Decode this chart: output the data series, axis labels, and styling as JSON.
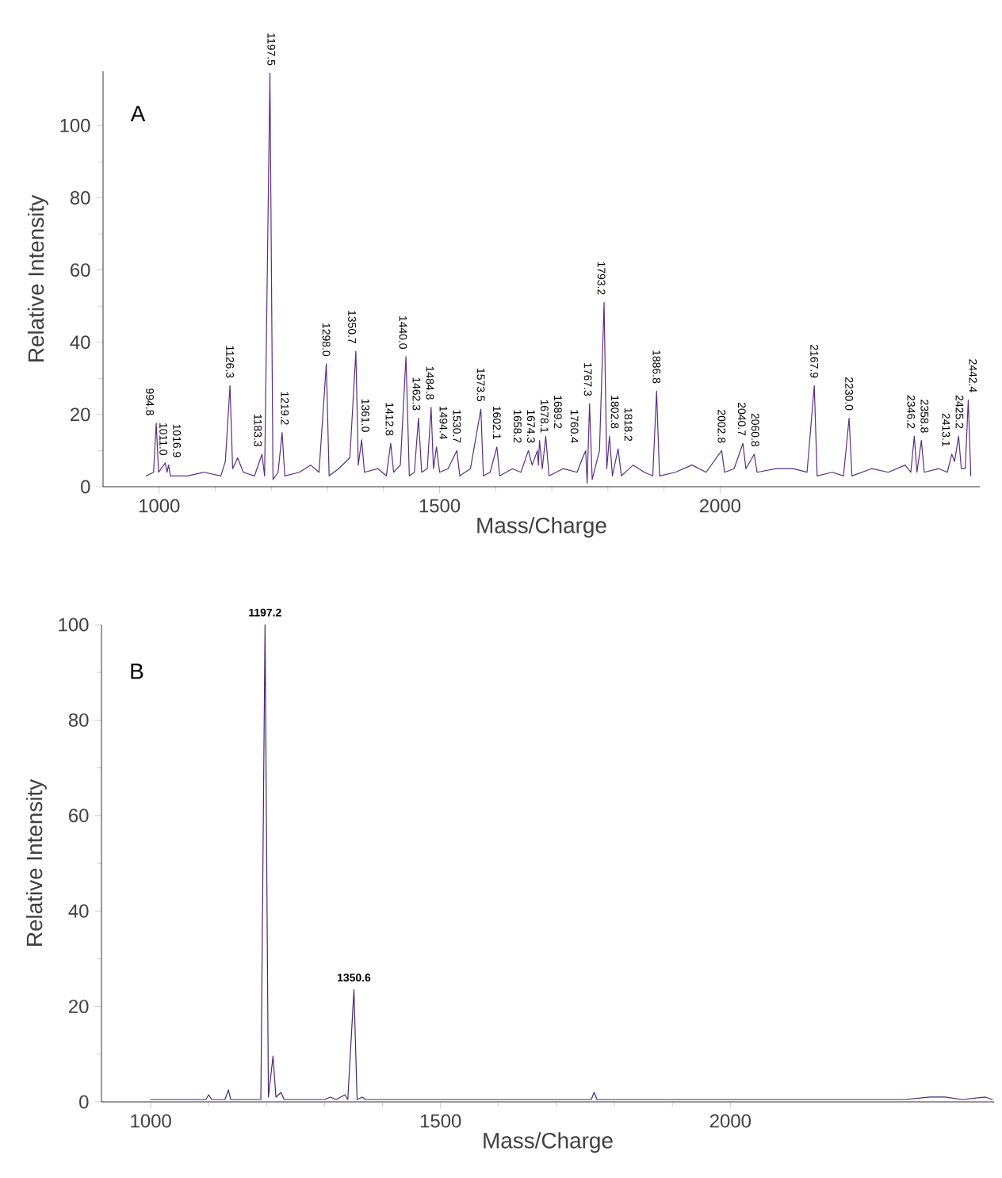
{
  "chart_data": [
    {
      "type": "line",
      "xlabel": "Mass/Charge",
      "ylabel": "Relative Intensity",
      "color": "#5b2c83",
      "xlim": [
        900,
        2463
      ],
      "ylim": [
        0,
        115
      ],
      "xticks": [
        1000,
        1500,
        2000
      ],
      "yticks": [
        0,
        20,
        40,
        60,
        80,
        100
      ],
      "x": [
        977,
        990,
        994.8,
        999,
        1011.0,
        1014,
        1016.9,
        1020,
        1050,
        1080,
        1110,
        1118,
        1126.3,
        1131,
        1140,
        1150,
        1170,
        1183.3,
        1188,
        1197.5,
        1203,
        1212,
        1219.2,
        1224,
        1250,
        1270,
        1285,
        1298.0,
        1303,
        1320,
        1340,
        1350.7,
        1355,
        1361.0,
        1366,
        1390,
        1405,
        1412.8,
        1418,
        1430,
        1440.0,
        1446,
        1455,
        1462.3,
        1468,
        1478,
        1484.8,
        1489,
        1494.4,
        1500,
        1515,
        1530.7,
        1536,
        1555,
        1573.5,
        1578,
        1590,
        1602.1,
        1607,
        1630,
        1645,
        1658.2,
        1665,
        1674.3,
        1676,
        1678.1,
        1683,
        1689.2,
        1695,
        1720,
        1745,
        1755,
        1760.4,
        1763,
        1767.3,
        1772,
        1785,
        1793.2,
        1798,
        1802.8,
        1808,
        1818.2,
        1824,
        1845,
        1865,
        1880,
        1886.8,
        1892,
        1920,
        1950,
        1975,
        2002.8,
        2008,
        2025,
        2040.7,
        2046,
        2060.8,
        2066,
        2100,
        2130,
        2155,
        2167.9,
        2173,
        2200,
        2220,
        2230.0,
        2235,
        2270,
        2300,
        2330,
        2340,
        2346.2,
        2351,
        2358.8,
        2364,
        2390,
        2405,
        2413.1,
        2418,
        2425.2,
        2430,
        2437,
        2442.4,
        2447
      ],
      "values": [
        3,
        4,
        17.6,
        4,
        6.6,
        4,
        6,
        3,
        3,
        4,
        3,
        7,
        28,
        5,
        8,
        4,
        3,
        9,
        3,
        114.5,
        2,
        4,
        15,
        3,
        4,
        6,
        4,
        34,
        3,
        5,
        8,
        37.5,
        6,
        13,
        4,
        5,
        3,
        12,
        4,
        6,
        36,
        3,
        4,
        19,
        4,
        5,
        22,
        5,
        11,
        4,
        5,
        10,
        3,
        5,
        21.5,
        3,
        4,
        11,
        3,
        5,
        4,
        10,
        6,
        10,
        6,
        12.8,
        5,
        14,
        3,
        5,
        4,
        8,
        10,
        1,
        23,
        2,
        10,
        51,
        5,
        14,
        3,
        10.5,
        3,
        6,
        4,
        3,
        26.5,
        3,
        4,
        6,
        4,
        10,
        4,
        5,
        12,
        5,
        9,
        4,
        5,
        5,
        4,
        28,
        3,
        4,
        3,
        19,
        3,
        5,
        4,
        6,
        4,
        14,
        4,
        12.8,
        4,
        5,
        4,
        9,
        7,
        14,
        5,
        5,
        24,
        3
      ],
      "annotations": [
        "A",
        {
          "text": "994.8",
          "x": 994.8,
          "y": 17.6
        },
        {
          "text": "1011.0",
          "x": 1011.0,
          "y": 6.6
        },
        {
          "text": "1016.9",
          "x": 1016.9,
          "y": 6
        },
        {
          "text": "1126.3",
          "x": 1126.3,
          "y": 28
        },
        {
          "text": "1183.3",
          "x": 1183.3,
          "y": 9
        },
        {
          "text": "1197.5",
          "x": 1197.5,
          "y": 114.5
        },
        {
          "text": "1219.2",
          "x": 1219.2,
          "y": 15
        },
        {
          "text": "1298.0",
          "x": 1298.0,
          "y": 34
        },
        {
          "text": "1350.7",
          "x": 1350.7,
          "y": 37.5
        },
        {
          "text": "1361.0",
          "x": 1361.0,
          "y": 13
        },
        {
          "text": "1412.8",
          "x": 1412.8,
          "y": 12
        },
        {
          "text": "1440.0",
          "x": 1440.0,
          "y": 36
        },
        {
          "text": "1462.3",
          "x": 1462.3,
          "y": 19
        },
        {
          "text": "1484.8",
          "x": 1484.8,
          "y": 22
        },
        {
          "text": "1494.4",
          "x": 1494.4,
          "y": 11
        },
        {
          "text": "1530.7",
          "x": 1530.7,
          "y": 10
        },
        {
          "text": "1573.5",
          "x": 1573.5,
          "y": 21.5
        },
        {
          "text": "1602.1",
          "x": 1602.1,
          "y": 11
        },
        {
          "text": "1658.2",
          "x": 1658.2,
          "y": 10
        },
        {
          "text": "1674.3",
          "x": 1674.3,
          "y": 10
        },
        {
          "text": "1678.1",
          "x": 1678.1,
          "y": 12.8
        },
        {
          "text": "1689.2",
          "x": 1689.2,
          "y": 14
        },
        {
          "text": "1760.4",
          "x": 1760.4,
          "y": 10
        },
        {
          "text": "1767.3",
          "x": 1767.3,
          "y": 23
        },
        {
          "text": "1793.2",
          "x": 1793.2,
          "y": 51
        },
        {
          "text": "1802.8",
          "x": 1802.8,
          "y": 14
        },
        {
          "text": "1818.2",
          "x": 1818.2,
          "y": 10.5
        },
        {
          "text": "1886.8",
          "x": 1886.8,
          "y": 26.5
        },
        {
          "text": "2002.8",
          "x": 2002.8,
          "y": 10
        },
        {
          "text": "2040.7",
          "x": 2040.7,
          "y": 12
        },
        {
          "text": "2060.8",
          "x": 2060.8,
          "y": 9
        },
        {
          "text": "2167.9",
          "x": 2167.9,
          "y": 28
        },
        {
          "text": "2230.0",
          "x": 2230.0,
          "y": 19
        },
        {
          "text": "2346.2",
          "x": 2346.2,
          "y": 14
        },
        {
          "text": "2358.8",
          "x": 2358.8,
          "y": 12.8
        },
        {
          "text": "2413.1",
          "x": 2413.1,
          "y": 9
        },
        {
          "text": "2425.2",
          "x": 2425.2,
          "y": 14
        },
        {
          "text": "2442.4",
          "x": 2442.4,
          "y": 24
        }
      ]
    },
    {
      "type": "line",
      "xlabel": "Mass/Charge",
      "ylabel": "Relative Intensity",
      "color": "#4a2570",
      "xlim": [
        915,
        2455
      ],
      "ylim": [
        0,
        100
      ],
      "xticks": [
        1000,
        1500,
        2000
      ],
      "yticks": [
        0,
        20,
        40,
        60,
        80,
        100
      ],
      "x": [
        1000,
        1095,
        1100,
        1105,
        1128,
        1134,
        1138,
        1190,
        1197.2,
        1203,
        1211,
        1216,
        1225,
        1230,
        1300,
        1310,
        1320,
        1335,
        1340,
        1350.6,
        1356,
        1365,
        1370,
        1760,
        1765,
        1770,
        2300,
        2345,
        2370,
        2400,
        2440,
        2452
      ],
      "values": [
        0.5,
        0.5,
        1.5,
        0.5,
        0.5,
        2.5,
        0.5,
        0.5,
        100,
        1,
        9.6,
        1,
        2,
        0.5,
        0.5,
        1,
        0.5,
        1.5,
        0.5,
        23.5,
        0.5,
        1,
        0.5,
        0.5,
        2,
        0.5,
        0.5,
        1,
        1,
        0.5,
        1,
        0.5
      ],
      "annotations": [
        "B",
        {
          "text": "1197.2",
          "x": 1197.2,
          "y": 100
        },
        {
          "text": "1350.6",
          "x": 1350.6,
          "y": 23.5
        }
      ]
    }
  ]
}
